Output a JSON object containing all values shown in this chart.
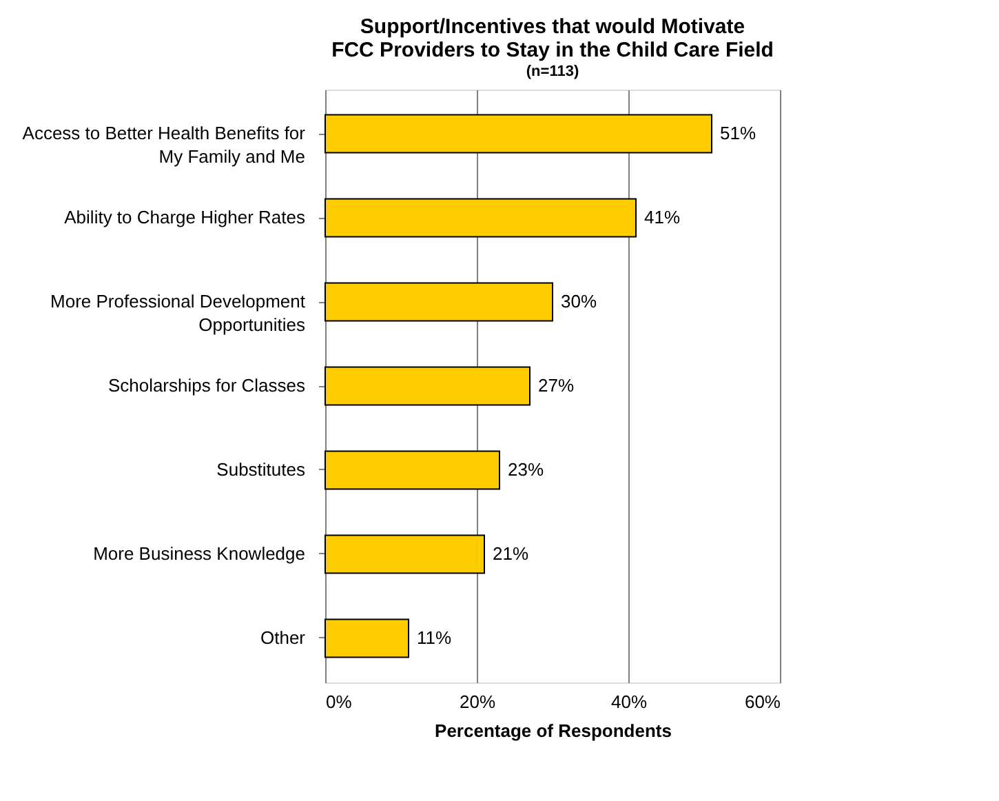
{
  "chart_data": {
    "type": "bar",
    "orientation": "horizontal",
    "title": [
      "Support/Incentives that would Motivate",
      "FCC Providers to Stay in the Child Care Field"
    ],
    "subtitle": "(n=113)",
    "categories": [
      "Access to Better Health Benefits for My Family and Me",
      "Ability to Charge Higher Rates",
      "More Professional Development Opportunities",
      "Scholarships for Classes",
      "Substitutes",
      "More Business Knowledge",
      "Other"
    ],
    "values": [
      51,
      41,
      30,
      27,
      23,
      21,
      11
    ],
    "value_labels": [
      "51%",
      "41%",
      "30%",
      "27%",
      "23%",
      "21%",
      "11%"
    ],
    "color": "#ffcc00",
    "xlabel": "Percentage of Respondents",
    "xlim": [
      0,
      60
    ],
    "xticks": [
      {
        "value": 0,
        "label": "0%"
      },
      {
        "value": 20,
        "label": "20%"
      },
      {
        "value": 40,
        "label": "40%"
      },
      {
        "value": 60,
        "label": "60%"
      }
    ],
    "grid": "x"
  }
}
